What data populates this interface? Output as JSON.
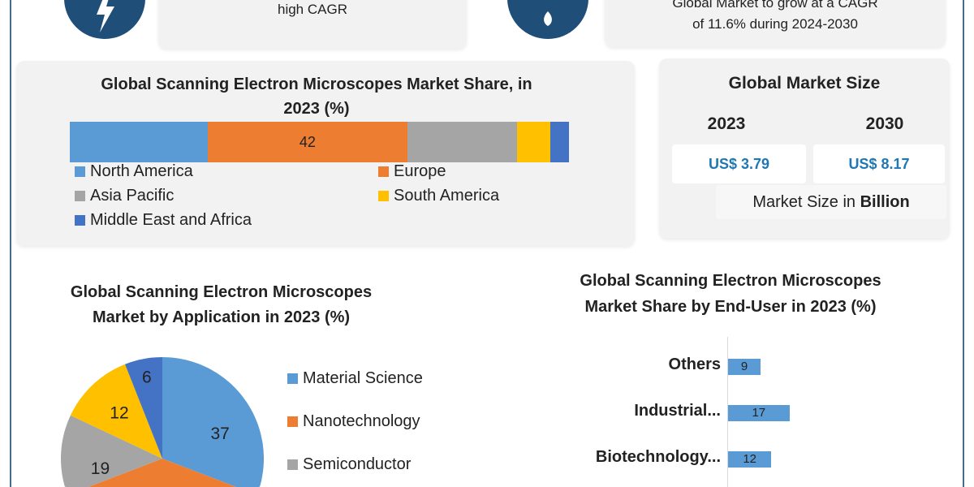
{
  "top": {
    "left_text": "high CAGR",
    "right_text_line1": "Global Market to grow at a CAGR",
    "right_text_line2": "of 11.6% during 2024-2030",
    "left_icon": "lightning-icon",
    "right_icon": "flame-icon",
    "icon_color": "#1f4e79"
  },
  "market_size": {
    "title": "Global Market Size",
    "year1": "2023",
    "year2": "2030",
    "value1": "US$ 3.79",
    "value2": "US$ 8.17",
    "unit_prefix": "Market Size in ",
    "unit_bold": "Billion"
  },
  "chart_data": [
    {
      "type": "bar",
      "orientation": "stacked-horizontal",
      "title": "Global Scanning Electron Microscopes Market Share, in 2023 (%)",
      "title_line1": "Global Scanning Electron Microscopes Market Share, in",
      "title_line2": "2023 (%)",
      "legend_position": "bottom",
      "series": [
        {
          "name": "North America",
          "value": 29,
          "color": "#5b9bd5"
        },
        {
          "name": "Europe",
          "value": 42,
          "label": "42",
          "color": "#ed7d31"
        },
        {
          "name": "Asia Pacific",
          "value": 23,
          "color": "#a5a5a5"
        },
        {
          "name": "South America",
          "value": 7,
          "color": "#ffc000"
        },
        {
          "name": "Middle East and Africa",
          "value": 4,
          "color": "#4472c4"
        }
      ]
    },
    {
      "type": "pie",
      "title_line1": "Global Scanning Electron Microscopes",
      "title_line2": "Market by Application in 2023 (%)",
      "legend_position": "right",
      "slices": [
        {
          "name": "Material Science",
          "value": 37,
          "label": "37",
          "color": "#5b9bd5"
        },
        {
          "name": "Nanotechnology",
          "value": 26,
          "color": "#ed7d31"
        },
        {
          "name": "Semiconductor",
          "value": 19,
          "label": "19",
          "color": "#a5a5a5"
        },
        {
          "value": 12,
          "label": "12",
          "color": "#ffc000"
        },
        {
          "value": 6,
          "label": "6",
          "color": "#4472c4"
        }
      ]
    },
    {
      "type": "bar",
      "orientation": "horizontal",
      "title_line1": "Global Scanning Electron Microscopes",
      "title_line2": "Market Share by End-User in 2023 (%)",
      "categories": [
        "Others",
        "Industrial...",
        "Biotechnology..."
      ],
      "values": [
        9,
        17,
        12
      ],
      "labels": [
        "9",
        "17",
        "12"
      ],
      "color": "#5b9bd5"
    }
  ]
}
